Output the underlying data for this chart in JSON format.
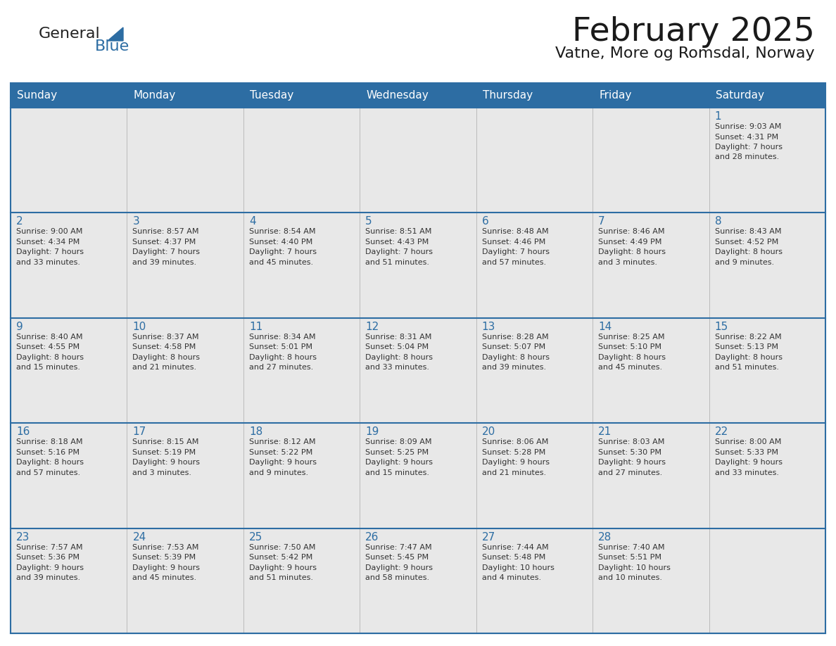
{
  "title": "February 2025",
  "subtitle": "Vatne, More og Romsdal, Norway",
  "header_bg": "#2d6da3",
  "header_text_color": "#ffffff",
  "row_bg": "#e8e8e8",
  "border_color": "#2d6da3",
  "day_number_color": "#2d6da3",
  "text_color": "#333333",
  "title_color": "#1a1a1a",
  "days_of_week": [
    "Sunday",
    "Monday",
    "Tuesday",
    "Wednesday",
    "Thursday",
    "Friday",
    "Saturday"
  ],
  "weeks": [
    [
      {
        "day": null,
        "sunrise": null,
        "sunset": null,
        "daylight": null
      },
      {
        "day": null,
        "sunrise": null,
        "sunset": null,
        "daylight": null
      },
      {
        "day": null,
        "sunrise": null,
        "sunset": null,
        "daylight": null
      },
      {
        "day": null,
        "sunrise": null,
        "sunset": null,
        "daylight": null
      },
      {
        "day": null,
        "sunrise": null,
        "sunset": null,
        "daylight": null
      },
      {
        "day": null,
        "sunrise": null,
        "sunset": null,
        "daylight": null
      },
      {
        "day": 1,
        "sunrise": "9:03 AM",
        "sunset": "4:31 PM",
        "daylight": "7 hours and 28 minutes."
      }
    ],
    [
      {
        "day": 2,
        "sunrise": "9:00 AM",
        "sunset": "4:34 PM",
        "daylight": "7 hours and 33 minutes."
      },
      {
        "day": 3,
        "sunrise": "8:57 AM",
        "sunset": "4:37 PM",
        "daylight": "7 hours and 39 minutes."
      },
      {
        "day": 4,
        "sunrise": "8:54 AM",
        "sunset": "4:40 PM",
        "daylight": "7 hours and 45 minutes."
      },
      {
        "day": 5,
        "sunrise": "8:51 AM",
        "sunset": "4:43 PM",
        "daylight": "7 hours and 51 minutes."
      },
      {
        "day": 6,
        "sunrise": "8:48 AM",
        "sunset": "4:46 PM",
        "daylight": "7 hours and 57 minutes."
      },
      {
        "day": 7,
        "sunrise": "8:46 AM",
        "sunset": "4:49 PM",
        "daylight": "8 hours and 3 minutes."
      },
      {
        "day": 8,
        "sunrise": "8:43 AM",
        "sunset": "4:52 PM",
        "daylight": "8 hours and 9 minutes."
      }
    ],
    [
      {
        "day": 9,
        "sunrise": "8:40 AM",
        "sunset": "4:55 PM",
        "daylight": "8 hours and 15 minutes."
      },
      {
        "day": 10,
        "sunrise": "8:37 AM",
        "sunset": "4:58 PM",
        "daylight": "8 hours and 21 minutes."
      },
      {
        "day": 11,
        "sunrise": "8:34 AM",
        "sunset": "5:01 PM",
        "daylight": "8 hours and 27 minutes."
      },
      {
        "day": 12,
        "sunrise": "8:31 AM",
        "sunset": "5:04 PM",
        "daylight": "8 hours and 33 minutes."
      },
      {
        "day": 13,
        "sunrise": "8:28 AM",
        "sunset": "5:07 PM",
        "daylight": "8 hours and 39 minutes."
      },
      {
        "day": 14,
        "sunrise": "8:25 AM",
        "sunset": "5:10 PM",
        "daylight": "8 hours and 45 minutes."
      },
      {
        "day": 15,
        "sunrise": "8:22 AM",
        "sunset": "5:13 PM",
        "daylight": "8 hours and 51 minutes."
      }
    ],
    [
      {
        "day": 16,
        "sunrise": "8:18 AM",
        "sunset": "5:16 PM",
        "daylight": "8 hours and 57 minutes."
      },
      {
        "day": 17,
        "sunrise": "8:15 AM",
        "sunset": "5:19 PM",
        "daylight": "9 hours and 3 minutes."
      },
      {
        "day": 18,
        "sunrise": "8:12 AM",
        "sunset": "5:22 PM",
        "daylight": "9 hours and 9 minutes."
      },
      {
        "day": 19,
        "sunrise": "8:09 AM",
        "sunset": "5:25 PM",
        "daylight": "9 hours and 15 minutes."
      },
      {
        "day": 20,
        "sunrise": "8:06 AM",
        "sunset": "5:28 PM",
        "daylight": "9 hours and 21 minutes."
      },
      {
        "day": 21,
        "sunrise": "8:03 AM",
        "sunset": "5:30 PM",
        "daylight": "9 hours and 27 minutes."
      },
      {
        "day": 22,
        "sunrise": "8:00 AM",
        "sunset": "5:33 PM",
        "daylight": "9 hours and 33 minutes."
      }
    ],
    [
      {
        "day": 23,
        "sunrise": "7:57 AM",
        "sunset": "5:36 PM",
        "daylight": "9 hours and 39 minutes."
      },
      {
        "day": 24,
        "sunrise": "7:53 AM",
        "sunset": "5:39 PM",
        "daylight": "9 hours and 45 minutes."
      },
      {
        "day": 25,
        "sunrise": "7:50 AM",
        "sunset": "5:42 PM",
        "daylight": "9 hours and 51 minutes."
      },
      {
        "day": 26,
        "sunrise": "7:47 AM",
        "sunset": "5:45 PM",
        "daylight": "9 hours and 58 minutes."
      },
      {
        "day": 27,
        "sunrise": "7:44 AM",
        "sunset": "5:48 PM",
        "daylight": "10 hours and 4 minutes."
      },
      {
        "day": 28,
        "sunrise": "7:40 AM",
        "sunset": "5:51 PM",
        "daylight": "10 hours and 10 minutes."
      },
      {
        "day": null,
        "sunrise": null,
        "sunset": null,
        "daylight": null
      }
    ]
  ]
}
